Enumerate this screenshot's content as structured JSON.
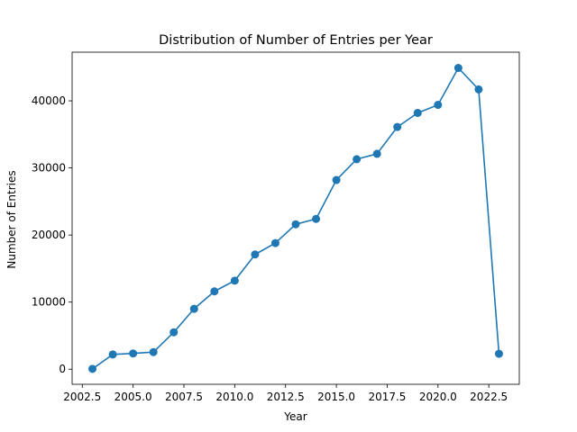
{
  "chart_data": {
    "type": "line",
    "title": "Distribution of Number of Entries per Year",
    "xlabel": "Year",
    "ylabel": "Number of Entries",
    "xlim": [
      2002.0,
      2024.0
    ],
    "ylim": [
      -2250,
      47250
    ],
    "xticks": [
      2002.5,
      2005.0,
      2007.5,
      2010.0,
      2012.5,
      2015.0,
      2017.5,
      2020.0,
      2022.5
    ],
    "xtick_labels": [
      "2002.5",
      "2005.0",
      "2007.5",
      "2010.0",
      "2012.5",
      "2015.0",
      "2017.5",
      "2020.0",
      "2022.5"
    ],
    "yticks": [
      0,
      10000,
      20000,
      30000,
      40000
    ],
    "ytick_labels": [
      "0",
      "10000",
      "20000",
      "30000",
      "40000"
    ],
    "grid": false,
    "color": "#1f77b4",
    "marker": "circle",
    "series": [
      {
        "x": [
          2003,
          2004,
          2005,
          2006,
          2007,
          2008,
          2009,
          2010,
          2011,
          2012,
          2013,
          2014,
          2015,
          2016,
          2017,
          2018,
          2019,
          2020,
          2021,
          2022,
          2023
        ],
        "values": [
          50,
          2200,
          2350,
          2550,
          5500,
          9000,
          11600,
          13200,
          17100,
          18800,
          21600,
          22400,
          28200,
          31300,
          32100,
          36100,
          38200,
          39400,
          44900,
          41700,
          2300
        ]
      }
    ]
  }
}
